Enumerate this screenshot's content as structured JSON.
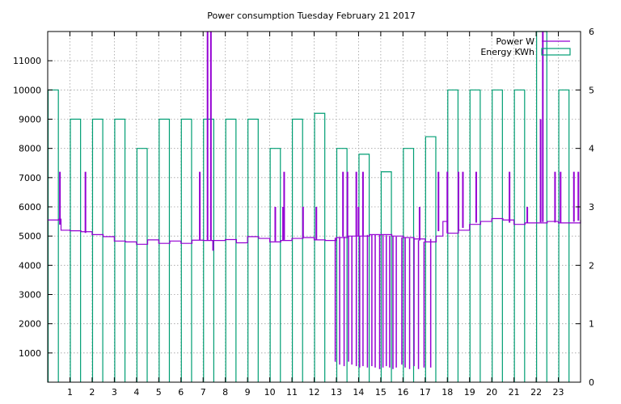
{
  "chart_data": {
    "type": "line",
    "title": "Power consumption Tuesday February 21 2017",
    "xlabel": "",
    "ylabel": "",
    "y2label": "",
    "xlim": [
      0,
      24
    ],
    "ylim": [
      0,
      12000
    ],
    "y2lim": [
      0,
      6
    ],
    "x_ticks": [
      1,
      2,
      3,
      4,
      5,
      6,
      7,
      8,
      9,
      10,
      11,
      12,
      13,
      14,
      15,
      16,
      17,
      18,
      19,
      20,
      21,
      22,
      23
    ],
    "y_ticks": [
      1000,
      2000,
      3000,
      4000,
      5000,
      6000,
      7000,
      8000,
      9000,
      10000,
      11000
    ],
    "y2_ticks": [
      0,
      1,
      2,
      3,
      4,
      5,
      6
    ],
    "grid": true,
    "legend_position": "top-right",
    "colors": {
      "power": "#9400d3",
      "energy": "#009e73"
    },
    "series": [
      {
        "name": "Power W",
        "axis": "left",
        "style": "line",
        "baseline": [
          [
            0.0,
            5550
          ],
          [
            0.5,
            5580
          ],
          [
            0.6,
            5200
          ],
          [
            1.0,
            5180
          ],
          [
            1.5,
            5150
          ],
          [
            2.0,
            5050
          ],
          [
            2.5,
            4980
          ],
          [
            3.0,
            4830
          ],
          [
            3.5,
            4800
          ],
          [
            4.0,
            4720
          ],
          [
            4.5,
            4870
          ],
          [
            5.0,
            4750
          ],
          [
            5.5,
            4830
          ],
          [
            6.0,
            4750
          ],
          [
            6.5,
            4860
          ],
          [
            7.0,
            4850
          ],
          [
            7.5,
            4850
          ],
          [
            8.0,
            4880
          ],
          [
            8.5,
            4770
          ],
          [
            9.0,
            4980
          ],
          [
            9.5,
            4920
          ],
          [
            10.0,
            4800
          ],
          [
            10.5,
            4850
          ],
          [
            11.0,
            4920
          ],
          [
            11.5,
            4950
          ],
          [
            12.0,
            4870
          ],
          [
            12.5,
            4850
          ],
          [
            13.0,
            4950
          ],
          [
            13.5,
            5000
          ],
          [
            14.0,
            5000
          ],
          [
            14.5,
            5050
          ],
          [
            15.0,
            5050
          ],
          [
            15.5,
            5000
          ],
          [
            16.0,
            4950
          ],
          [
            16.5,
            4900
          ],
          [
            17.0,
            4800
          ],
          [
            17.5,
            5000
          ],
          [
            17.8,
            5500
          ],
          [
            18.0,
            5100
          ],
          [
            18.5,
            5200
          ],
          [
            19.0,
            5400
          ],
          [
            19.5,
            5500
          ],
          [
            20.0,
            5600
          ],
          [
            20.5,
            5550
          ],
          [
            21.0,
            5400
          ],
          [
            21.5,
            5450
          ],
          [
            22.0,
            5450
          ],
          [
            22.5,
            5500
          ],
          [
            23.0,
            5450
          ],
          [
            23.5,
            5450
          ],
          [
            24.0,
            5550
          ]
        ],
        "spikes": [
          [
            0.55,
            7200
          ],
          [
            1.7,
            7200
          ],
          [
            6.85,
            7200
          ],
          [
            7.2,
            12000
          ],
          [
            7.35,
            12000
          ],
          [
            7.45,
            4500
          ],
          [
            10.25,
            6000
          ],
          [
            10.6,
            6000
          ],
          [
            10.65,
            7200
          ],
          [
            11.5,
            6000
          ],
          [
            12.1,
            6000
          ],
          [
            13.3,
            7200
          ],
          [
            13.5,
            7200
          ],
          [
            13.9,
            7200
          ],
          [
            14.0,
            6000
          ],
          [
            14.2,
            7200
          ],
          [
            16.75,
            6000
          ],
          [
            17.6,
            7200
          ],
          [
            18.0,
            7200
          ],
          [
            18.5,
            7200
          ],
          [
            18.7,
            7200
          ],
          [
            19.3,
            7200
          ],
          [
            20.8,
            7200
          ],
          [
            21.6,
            6000
          ],
          [
            22.2,
            9000
          ],
          [
            22.3,
            12000
          ],
          [
            22.85,
            7200
          ],
          [
            23.1,
            7200
          ],
          [
            23.7,
            7200
          ],
          [
            23.9,
            7200
          ]
        ],
        "dips": [
          [
            12.95,
            700
          ],
          [
            13.15,
            600
          ],
          [
            13.35,
            550
          ],
          [
            13.55,
            700
          ],
          [
            13.7,
            600
          ],
          [
            13.9,
            550
          ],
          [
            14.05,
            500
          ],
          [
            14.2,
            550
          ],
          [
            14.4,
            500
          ],
          [
            14.6,
            550
          ],
          [
            14.75,
            500
          ],
          [
            14.95,
            450
          ],
          [
            15.1,
            500
          ],
          [
            15.25,
            550
          ],
          [
            15.4,
            500
          ],
          [
            15.55,
            450
          ],
          [
            15.7,
            500
          ],
          [
            15.95,
            600
          ],
          [
            16.1,
            500
          ],
          [
            16.3,
            450
          ],
          [
            16.5,
            550
          ],
          [
            16.7,
            450
          ],
          [
            16.95,
            500
          ],
          [
            17.25,
            500
          ]
        ]
      },
      {
        "name": "Energy KWh",
        "axis": "right",
        "style": "boxes",
        "x": [
          0,
          1,
          2,
          3,
          4,
          5,
          6,
          7,
          8,
          9,
          10,
          11,
          12,
          13,
          14,
          15,
          16,
          17,
          18,
          19,
          20,
          21,
          22,
          23
        ],
        "values": [
          5.0,
          4.5,
          4.5,
          4.5,
          4.0,
          4.5,
          4.5,
          4.5,
          4.5,
          4.5,
          4.0,
          4.5,
          4.6,
          4.0,
          3.9,
          3.6,
          4.0,
          4.2,
          5.0,
          5.0,
          5.0,
          5.0,
          6.0,
          5.0
        ]
      }
    ]
  }
}
